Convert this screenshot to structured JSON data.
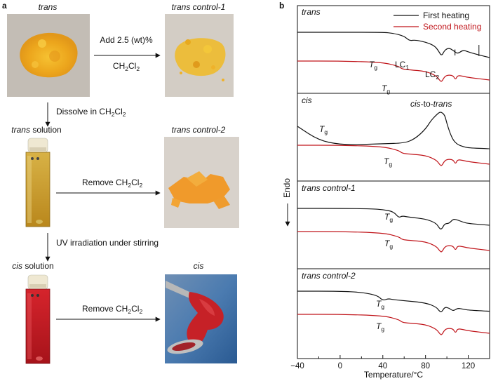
{
  "panel_a": {
    "label": "a",
    "samples": {
      "trans": "trans",
      "trans_control_1": "trans control-1",
      "trans_solution_name": "trans",
      "trans_solution_suffix": "solution",
      "trans_control_2": "trans control-2",
      "cis_solution_name": "cis",
      "cis_solution_suffix": "solution",
      "cis": "cis"
    },
    "steps": {
      "add_prefix": "Add 2.5 (wt)%",
      "dissolve": "Dissolve in CH",
      "remove": "Remove CH",
      "uv": "UV irradiation under stirring"
    },
    "chem": {
      "ch": "CH",
      "cl": "Cl",
      "sub2": "2"
    },
    "colors": {
      "yellow_powder": "#efb321",
      "orange_flakes": "#f09a2b",
      "red_solution": "#c41a22",
      "amber_solution": "#c99a1c"
    }
  },
  "panel_b": {
    "label": "b",
    "legend": {
      "first": "First heating",
      "second": "Second heating"
    },
    "colors": {
      "first": "#111111",
      "second": "#c0141a"
    },
    "annotations": {
      "tg_t": "T",
      "tg_sub": "g",
      "lc_main": "LC",
      "lc1_sub": "1",
      "lc2_sub": "2",
      "iso": "I",
      "cis_to_trans_a": "cis",
      "cis_to_trans_b": "-to-",
      "cis_to_trans_c": "trans"
    },
    "endo_label": "Endo",
    "xlabel": "Temperature/°C",
    "xticks": [
      "−40",
      "0",
      "40",
      "80",
      "120"
    ]
  },
  "chart_data": {
    "type": "line",
    "title": "",
    "xlabel": "Temperature/°C",
    "ylabel": "Endo",
    "xlim": [
      -40,
      140
    ],
    "xticks": [
      -40,
      0,
      40,
      80,
      120
    ],
    "grid": false,
    "legend_position": "top-right",
    "panels": [
      {
        "name": "trans",
        "series": [
          {
            "name": "First heating",
            "x": [
              -40,
              0,
              40,
              50,
              60,
              65,
              70,
              80,
              88,
              92,
              95,
              98,
              102,
              106,
              110,
              115,
              120,
              130,
              140
            ],
            "y": [
              0,
              0,
              0,
              -0.04,
              -0.15,
              -0.34,
              -0.3,
              -0.39,
              -0.52,
              -0.72,
              -0.95,
              -0.7,
              -0.62,
              -0.72,
              -0.86,
              -0.7,
              -0.78,
              -0.9,
              -1.0
            ]
          },
          {
            "name": "Second heating",
            "x": [
              -40,
              0,
              40,
              55,
              58,
              65,
              80,
              90,
              93,
              95,
              98,
              102,
              106,
              108,
              110,
              115,
              120,
              140
            ],
            "y": [
              0,
              0,
              -0.06,
              -0.25,
              -0.38,
              -0.42,
              -0.48,
              -0.7,
              -0.9,
              -1.0,
              -0.72,
              -0.66,
              -0.7,
              -0.9,
              -0.68,
              -0.72,
              -0.78,
              -0.9
            ]
          }
        ],
        "annotations": [
          "Tg",
          "LC1",
          "LC2",
          "I"
        ]
      },
      {
        "name": "cis",
        "series": [
          {
            "name": "First heating",
            "x": [
              -40,
              -20,
              0,
              20,
              40,
              60,
              70,
              80,
              85,
              90,
              93,
              95,
              98,
              100,
              103,
              106,
              110,
              115,
              120,
              140
            ],
            "y": [
              -0.2,
              -0.7,
              -0.85,
              -0.85,
              -0.82,
              -0.8,
              -0.65,
              -0.3,
              0.0,
              0.2,
              0.3,
              0.3,
              0.2,
              -0.1,
              -0.45,
              -0.7,
              -0.85,
              -0.92,
              -0.97,
              -1.0
            ]
          },
          {
            "name": "Second heating",
            "x": [
              -40,
              0,
              40,
              55,
              58,
              65,
              80,
              90,
              93,
              95,
              98,
              102,
              106,
              108,
              110,
              115,
              120,
              140
            ],
            "y": [
              0,
              0,
              -0.06,
              -0.25,
              -0.38,
              -0.42,
              -0.48,
              -0.7,
              -0.9,
              -1.0,
              -0.72,
              -0.66,
              -0.7,
              -0.9,
              -0.68,
              -0.72,
              -0.78,
              -0.9
            ]
          }
        ],
        "annotations": [
          "Tg",
          "cis-to-trans",
          "Tg"
        ]
      },
      {
        "name": "trans control-1",
        "series": [
          {
            "name": "First heating",
            "x": [
              -40,
              0,
              30,
              40,
              50,
              55,
              58,
              65,
              80,
              90,
              93,
              95,
              98,
              102,
              106,
              110,
              115,
              120,
              140
            ],
            "y": [
              0,
              0,
              -0.02,
              -0.06,
              -0.15,
              -0.45,
              -0.35,
              -0.42,
              -0.5,
              -0.7,
              -0.95,
              -1.0,
              -0.72,
              -0.72,
              -0.5,
              -0.55,
              -0.65,
              -0.72,
              -0.8
            ]
          },
          {
            "name": "Second heating",
            "x": [
              -40,
              0,
              40,
              55,
              58,
              65,
              80,
              90,
              93,
              95,
              98,
              102,
              106,
              108,
              110,
              115,
              120,
              140
            ],
            "y": [
              0,
              0,
              -0.06,
              -0.25,
              -0.38,
              -0.42,
              -0.48,
              -0.7,
              -0.9,
              -1.0,
              -0.72,
              -0.66,
              -0.7,
              -0.9,
              -0.68,
              -0.72,
              -0.78,
              -0.9
            ]
          }
        ],
        "annotations": [
          "Tg",
          "Tg"
        ]
      },
      {
        "name": "trans control-2",
        "series": [
          {
            "name": "First heating",
            "x": [
              -40,
              0,
              20,
              35,
              40,
              45,
              50,
              60,
              80,
              90,
              93,
              95,
              98,
              102,
              106,
              110,
              115,
              120,
              140
            ],
            "y": [
              0,
              0,
              -0.05,
              -0.2,
              -0.45,
              -0.35,
              -0.4,
              -0.45,
              -0.55,
              -0.75,
              -0.95,
              -1.0,
              -0.75,
              -0.8,
              -0.95,
              -0.8,
              -0.85,
              -0.9,
              -0.95
            ]
          },
          {
            "name": "Second heating",
            "x": [
              -40,
              0,
              40,
              55,
              58,
              65,
              80,
              90,
              93,
              95,
              98,
              102,
              106,
              108,
              110,
              115,
              120,
              140
            ],
            "y": [
              0,
              0,
              -0.06,
              -0.25,
              -0.38,
              -0.42,
              -0.48,
              -0.7,
              -0.9,
              -1.0,
              -0.72,
              -0.66,
              -0.7,
              -0.9,
              -0.68,
              -0.72,
              -0.78,
              -0.9
            ]
          }
        ],
        "annotations": [
          "Tg",
          "Tg"
        ]
      }
    ]
  }
}
